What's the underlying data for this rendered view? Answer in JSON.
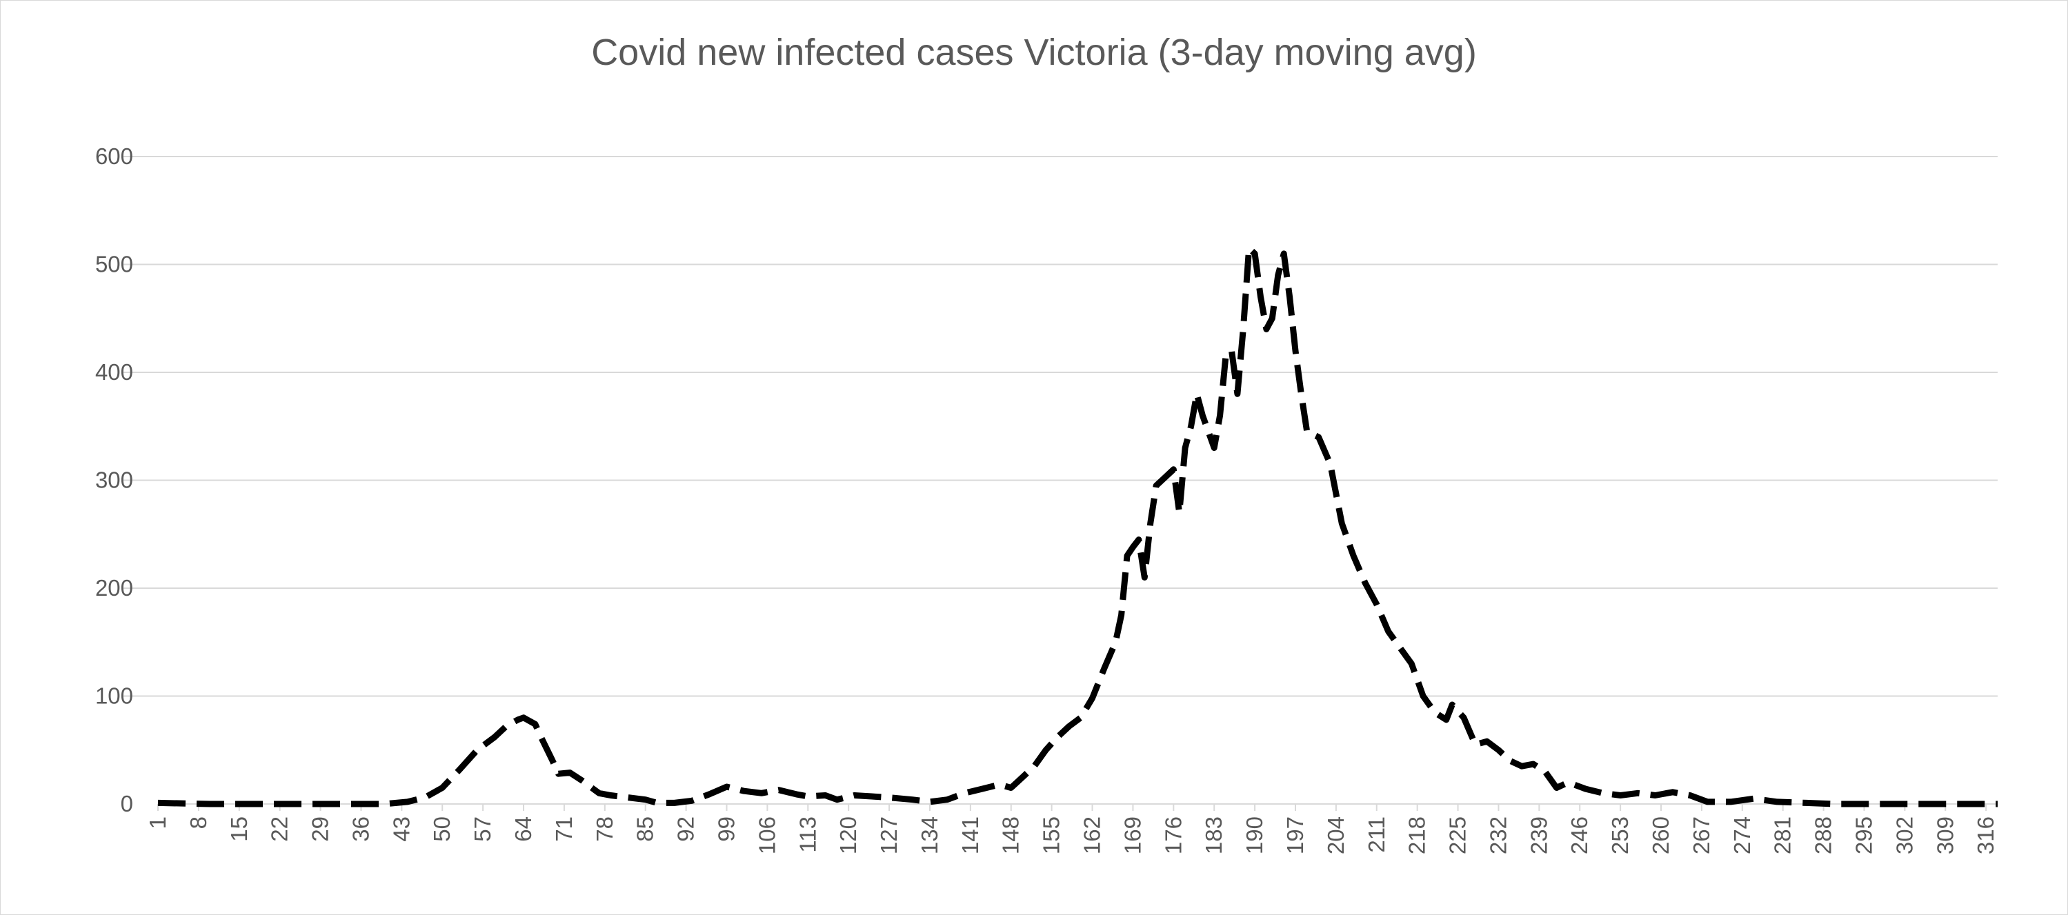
{
  "chart_data": {
    "type": "line",
    "title": "Covid new infected cases Victoria (3-day moving avg)",
    "xlabel": "",
    "ylabel": "",
    "ylim": [
      0,
      600
    ],
    "y_ticks": [
      0,
      100,
      200,
      300,
      400,
      500,
      600
    ],
    "x_ticks": [
      1,
      8,
      15,
      22,
      29,
      36,
      43,
      50,
      57,
      64,
      71,
      78,
      85,
      92,
      99,
      106,
      113,
      120,
      127,
      134,
      141,
      148,
      155,
      162,
      169,
      176,
      183,
      190,
      197,
      204,
      211,
      218,
      225,
      232,
      239,
      246,
      253,
      260,
      267,
      274,
      281,
      288,
      295,
      302,
      309,
      316
    ],
    "grid": true,
    "legend": "none",
    "line_style": "dashed",
    "series_color": "#000000",
    "x_range": [
      1,
      318
    ],
    "series": [
      {
        "points": [
          [
            1,
            1
          ],
          [
            10,
            0
          ],
          [
            20,
            0
          ],
          [
            30,
            0
          ],
          [
            40,
            0
          ],
          [
            44,
            2
          ],
          [
            47,
            6
          ],
          [
            50,
            15
          ],
          [
            53,
            32
          ],
          [
            56,
            50
          ],
          [
            59,
            62
          ],
          [
            61,
            72
          ],
          [
            63,
            78
          ],
          [
            64,
            80
          ],
          [
            66,
            74
          ],
          [
            67,
            62
          ],
          [
            69,
            40
          ],
          [
            70,
            28
          ],
          [
            72,
            29
          ],
          [
            74,
            22
          ],
          [
            77,
            10
          ],
          [
            79,
            8
          ],
          [
            82,
            6
          ],
          [
            85,
            4
          ],
          [
            87,
            1
          ],
          [
            90,
            1
          ],
          [
            93,
            3
          ],
          [
            96,
            9
          ],
          [
            99,
            16
          ],
          [
            102,
            12
          ],
          [
            105,
            10
          ],
          [
            108,
            13
          ],
          [
            111,
            9
          ],
          [
            113,
            7
          ],
          [
            116,
            8
          ],
          [
            118,
            4
          ],
          [
            121,
            8
          ],
          [
            124,
            7
          ],
          [
            127,
            6
          ],
          [
            131,
            4
          ],
          [
            134,
            2
          ],
          [
            137,
            4
          ],
          [
            140,
            10
          ],
          [
            143,
            14
          ],
          [
            146,
            18
          ],
          [
            148,
            15
          ],
          [
            150,
            25
          ],
          [
            152,
            35
          ],
          [
            154,
            50
          ],
          [
            156,
            62
          ],
          [
            158,
            72
          ],
          [
            160,
            80
          ],
          [
            162,
            98
          ],
          [
            164,
            125
          ],
          [
            166,
            150
          ],
          [
            167,
            175
          ],
          [
            168,
            230
          ],
          [
            169,
            238
          ],
          [
            170,
            245
          ],
          [
            171,
            210
          ],
          [
            172,
            260
          ],
          [
            173,
            295
          ],
          [
            174,
            300
          ],
          [
            176,
            310
          ],
          [
            177,
            270
          ],
          [
            178,
            330
          ],
          [
            179,
            350
          ],
          [
            180,
            380
          ],
          [
            181,
            360
          ],
          [
            183,
            330
          ],
          [
            184,
            360
          ],
          [
            185,
            415
          ],
          [
            186,
            420
          ],
          [
            187,
            380
          ],
          [
            188,
            440
          ],
          [
            189,
            515
          ],
          [
            190,
            510
          ],
          [
            191,
            470
          ],
          [
            192,
            440
          ],
          [
            193,
            450
          ],
          [
            194,
            490
          ],
          [
            195,
            510
          ],
          [
            196,
            470
          ],
          [
            197,
            420
          ],
          [
            198,
            380
          ],
          [
            199,
            345
          ],
          [
            201,
            340
          ],
          [
            203,
            315
          ],
          [
            205,
            260
          ],
          [
            207,
            230
          ],
          [
            209,
            205
          ],
          [
            211,
            185
          ],
          [
            213,
            160
          ],
          [
            215,
            145
          ],
          [
            217,
            130
          ],
          [
            219,
            100
          ],
          [
            221,
            85
          ],
          [
            223,
            78
          ],
          [
            224,
            92
          ],
          [
            226,
            80
          ],
          [
            228,
            55
          ],
          [
            230,
            58
          ],
          [
            232,
            50
          ],
          [
            234,
            40
          ],
          [
            236,
            35
          ],
          [
            238,
            37
          ],
          [
            240,
            30
          ],
          [
            242,
            15
          ],
          [
            244,
            20
          ],
          [
            247,
            14
          ],
          [
            250,
            10
          ],
          [
            253,
            8
          ],
          [
            256,
            10
          ],
          [
            259,
            8
          ],
          [
            262,
            11
          ],
          [
            265,
            8
          ],
          [
            268,
            2
          ],
          [
            272,
            2
          ],
          [
            276,
            5
          ],
          [
            280,
            2
          ],
          [
            285,
            1
          ],
          [
            290,
            0
          ],
          [
            300,
            0
          ],
          [
            310,
            0
          ],
          [
            318,
            0
          ]
        ]
      }
    ]
  }
}
